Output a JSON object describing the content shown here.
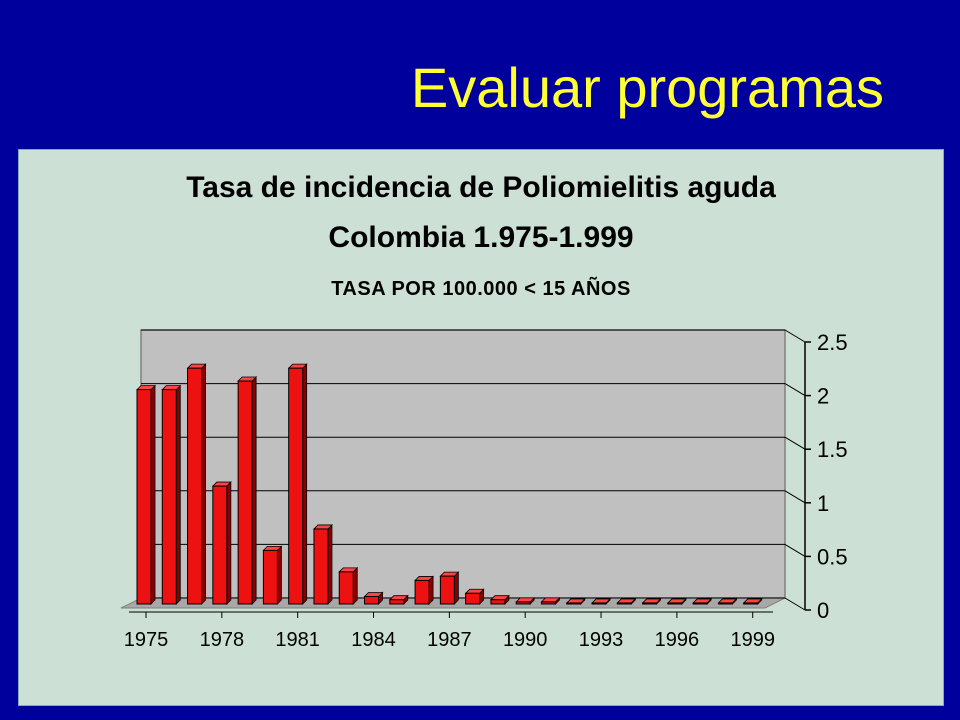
{
  "slide": {
    "title": "Evaluar programas",
    "colors": {
      "background": "#00009c",
      "title": "#ffff33",
      "panel": "#cde0d5"
    }
  },
  "chart_data": {
    "type": "bar",
    "title": "Tasa de incidencia de Poliomielitis aguda",
    "subtitle": "Colombia 1.975-1.999",
    "ylabel": "TASA POR 100.000 < 15 AÑOS",
    "categories": [
      "1975",
      "1976",
      "1977",
      "1978",
      "1979",
      "1980",
      "1981",
      "1982",
      "1983",
      "1984",
      "1985",
      "1986",
      "1987",
      "1988",
      "1989",
      "1990",
      "1991",
      "1992",
      "1993",
      "1994",
      "1995",
      "1996",
      "1997",
      "1998",
      "1999"
    ],
    "x_tick_labels": [
      "1975",
      "1978",
      "1981",
      "1984",
      "1987",
      "1990",
      "1993",
      "1996",
      "1999"
    ],
    "values": [
      2.0,
      2.0,
      2.2,
      1.1,
      2.08,
      0.5,
      2.2,
      0.7,
      0.3,
      0.07,
      0.04,
      0.22,
      0.26,
      0.1,
      0.04,
      0.02,
      0.02,
      0.01,
      0.01,
      0.01,
      0.01,
      0.01,
      0.01,
      0.01,
      0.01
    ],
    "yticks": [
      "0",
      "0.5",
      "1",
      "1.5",
      "2",
      "2.5"
    ],
    "ylim": [
      0,
      2.5
    ],
    "y_axis_position": "right",
    "grid": true,
    "three_d": true,
    "bar_color": "#ee1111"
  }
}
